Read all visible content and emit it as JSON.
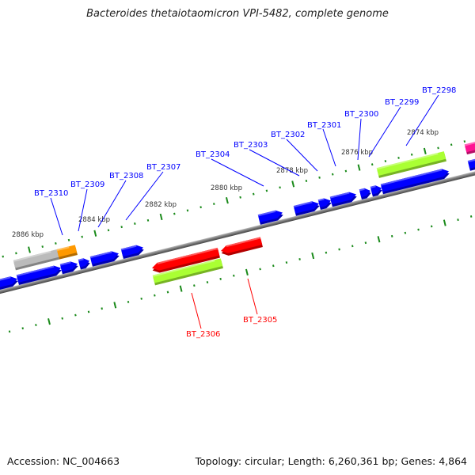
{
  "title": "Bacteroides thetaiotaomicron VPI-5482, complete genome",
  "footer": {
    "accession": "Accession: NC_004663",
    "topology": "Topology: circular; Length: 6,260,361 bp; Genes: 4,864"
  },
  "colors": {
    "forward_gene": "#0000ff",
    "reverse_gene": "#ff0000",
    "rna": "#aaff33",
    "backbone": "#777777",
    "ticks": "#1a8a1a",
    "grey_feature": "#bbbbbb",
    "orange_feature": "#ff9900",
    "pink_feature": "#ff1493"
  },
  "kbp_labels": [
    "2886 kbp",
    "2884 kbp",
    "2882 kbp",
    "2880 kbp",
    "2878 kbp",
    "2876 kbp",
    "2874 kbp"
  ],
  "gene_labels": [
    {
      "text": "BT_2310",
      "color": "#0000ff"
    },
    {
      "text": "BT_2309",
      "color": "#0000ff"
    },
    {
      "text": "BT_2308",
      "color": "#0000ff"
    },
    {
      "text": "BT_2307",
      "color": "#0000ff"
    },
    {
      "text": "BT_2304",
      "color": "#0000ff"
    },
    {
      "text": "BT_2303",
      "color": "#0000ff"
    },
    {
      "text": "BT_2302",
      "color": "#0000ff"
    },
    {
      "text": "BT_2301",
      "color": "#0000ff"
    },
    {
      "text": "BT_2300",
      "color": "#0000ff"
    },
    {
      "text": "BT_2299",
      "color": "#0000ff"
    },
    {
      "text": "BT_2298",
      "color": "#0000ff"
    },
    {
      "text": "BT_2306",
      "color": "#ff0000"
    },
    {
      "text": "BT_2305",
      "color": "#ff0000"
    }
  ]
}
